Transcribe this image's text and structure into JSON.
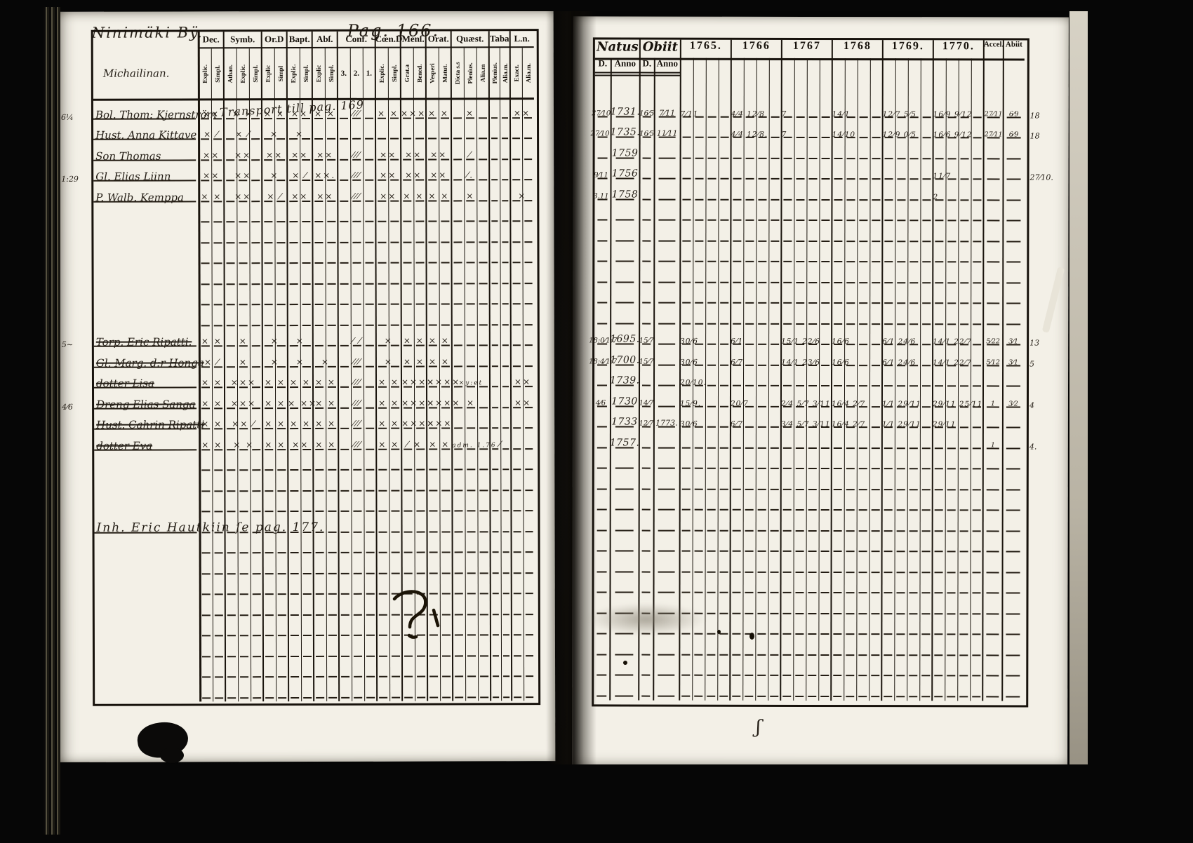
{
  "misc": {
    "place": "Ninimäki Bÿ.",
    "pag": "Pag. 166.",
    "name_col_note": "Michailinan.",
    "transport_note": "Transport till pag. 169",
    "bottom_note": "Inh. Eric Hautkiin ſe pag. 177.",
    "squiggle": "ʃ",
    "question_mark": "?"
  },
  "left_table": {
    "columns": [
      {
        "label": "Dec.",
        "subs": [
          "Explic.",
          "Simpl."
        ]
      },
      {
        "label": "Symb.",
        "subs": [
          "Athan.",
          "Explic.",
          "Simpl."
        ]
      },
      {
        "label": "Or.D",
        "subs": [
          "Explic",
          "Simpl"
        ]
      },
      {
        "label": "Bapt.",
        "subs": [
          "Explic.",
          "Simpl."
        ]
      },
      {
        "label": "Abſ.",
        "subs": [
          "Explic",
          "Simpl."
        ]
      },
      {
        "label": "Conf.",
        "subs": [
          "3.",
          "2.",
          "1."
        ],
        "horizontal": true
      },
      {
        "label": "Cœn.D",
        "subs": [
          "Explic.",
          "Simpl."
        ]
      },
      {
        "label": "Menſ.",
        "subs": [
          "Grat.a",
          "Bened."
        ]
      },
      {
        "label": "Orat.",
        "subs": [
          "Vesperi",
          "Matut."
        ]
      },
      {
        "label": "Quæst.",
        "subs": [
          "Dicta s.s",
          "Plenius.",
          "Alia.m"
        ]
      },
      {
        "label": "Taba",
        "subs": [
          "Plenius.",
          "Alia.m."
        ]
      },
      {
        "label": "L.n.",
        "subs": [
          "Exact.",
          "Alia.m."
        ]
      }
    ],
    "rows": [
      {
        "margin": "6¼",
        "name": "Bol. Thom: Kjernström",
        "marks": [
          "××",
          "× ×",
          "× ×",
          "××",
          "× ×",
          "⁄⁄⁄",
          "× ×",
          "×××",
          "× ×",
          "×",
          "",
          "××"
        ]
      },
      {
        "name": "Hust. Anna Kittave",
        "marks": [
          "× ⁄",
          "× ⁄",
          "×",
          "×",
          "",
          "",
          "",
          "",
          "",
          "",
          "",
          ""
        ]
      },
      {
        "name": "Son Thomas",
        "marks": [
          "××",
          "××",
          "××",
          "××",
          "××",
          "⁄⁄⁄",
          "××",
          "××",
          "××",
          "⁄",
          "",
          ""
        ]
      },
      {
        "margin": "1:29",
        "name": "Gl. Elias Liinn",
        "marks": [
          "××",
          "××",
          "×",
          "× ⁄",
          "××.",
          "⁄⁄⁄",
          "××",
          "××",
          "××",
          "⁄.",
          "",
          ""
        ]
      },
      {
        "name": "P. Walb. Kemppa",
        "marks": [
          "× ×",
          "××",
          "× ⁄",
          "××",
          "××",
          "⁄⁄⁄",
          "××",
          "× ×",
          "× ×",
          "×",
          "",
          "×"
        ]
      },
      {},
      {},
      {},
      {},
      {},
      {},
      {
        "margin": "5~",
        "name": "Torp. Eric Ripatti.",
        "struck": true,
        "marks": [
          "× ×",
          "×",
          "×",
          "×",
          "",
          "⁄ ⁄",
          "×",
          "× ×",
          "× ×",
          "",
          "",
          ""
        ]
      },
      {
        "name": "Gl. Marg. d:r Honga",
        "struck": true,
        "marks": [
          "× ⁄",
          "×",
          "×",
          "×",
          "×",
          "⁄⁄⁄",
          "×",
          "× ×",
          "× ×",
          "",
          "",
          ""
        ]
      },
      {
        "name": "dotter Lisa",
        "struck": true,
        "marks": [
          "× ×",
          "×××",
          "× ×",
          "× ×",
          "× ×",
          "⁄⁄⁄",
          "× ×",
          "××××",
          "××××",
          "×y:et",
          "",
          "××"
        ]
      },
      {
        "margin": "4⁄6",
        "name": "Dreng Elias Sanga",
        "struck": true,
        "marks": [
          "× ×",
          "×××",
          "× ×",
          "× ××",
          "× ×",
          "⁄⁄⁄",
          "× ×",
          "××××",
          "××××",
          "×",
          "",
          "××"
        ]
      },
      {
        "name": "Hust. Cahrin Ripatti",
        "struck": true,
        "marks": [
          "× ×",
          "×× ⁄",
          "× ×",
          "× ×",
          "× ×",
          "⁄⁄⁄",
          "× ×",
          "××××",
          "×××",
          "",
          "",
          ""
        ]
      },
      {
        "name": "dotter Eva",
        "struck": true,
        "marks": [
          "× ×",
          "× ×",
          "× ×",
          "××",
          "× ×",
          "⁄⁄⁄",
          "× ×",
          "⁄ ×",
          "× ×",
          "adm. 1.76",
          "⁄",
          ""
        ]
      },
      {},
      {},
      {},
      {
        "name": "Inh. Eric Hautkiin ſe pag. 177.",
        "wide": true
      },
      {},
      {},
      {},
      {},
      {},
      {},
      {},
      {}
    ]
  },
  "right_table": {
    "header": {
      "natus": "Natus",
      "obiit": "Obiit",
      "d1": "D.",
      "anno1": "Anno",
      "d2": "D.",
      "anno2": "Anno",
      "years": [
        "1765.",
        "1766",
        "1767",
        "1768",
        "1769.",
        "1770."
      ],
      "accel": "Accel.",
      "abiit": "Abiit"
    },
    "rows": [
      {
        "nd": "27⁄10",
        "na": "1731.",
        "od": "16⁄5",
        "oa": "7⁄11",
        "y": [
          "7⁄11",
          "4⁄4 12⁄8",
          "7",
          "14⁄1",
          "12⁄7 5⁄5",
          "16⁄9 9⁄12"
        ],
        "ac": "27⁄11",
        "ab": "6⁄9",
        "mg": "18"
      },
      {
        "nd": "27⁄10.",
        "na": "1735.",
        "od": "16⁄5",
        "oa": "11⁄11",
        "y": [
          "",
          "4⁄4 12⁄8.",
          "7",
          "14⁄10",
          "12⁄9 0⁄5",
          "16⁄6 9⁄12"
        ],
        "ac": "27⁄11",
        "ab": "6⁄9",
        "mg": "18"
      },
      {
        "na": "1759"
      },
      {
        "nd": "9⁄11",
        "na": "1756",
        "y": [
          "",
          "",
          "",
          "",
          "",
          "11⁄7"
        ],
        "mg": "27⁄10."
      },
      {
        "nd": "3.11",
        "na": "1758",
        "y": [
          "",
          "",
          "",
          "",
          "",
          "2"
        ]
      },
      {},
      {},
      {},
      {},
      {},
      {},
      {
        "nd": "18:0⁄1:7",
        "na": "1695.",
        "od": "15⁄7",
        "y": [
          "30⁄6",
          "6⁄1",
          "15⁄1 22⁄6",
          "16⁄6",
          "6⁄1 24⁄6",
          "14⁄1 22⁄7"
        ],
        "ac": "5⁄22",
        "ab": "3⁄1",
        "mg": "13"
      },
      {
        "nd": "18:4⁄1:7",
        "na": "1700.",
        "od": "15⁄7",
        "y": [
          "30⁄6",
          "6⁄7",
          "14⁄1 23⁄6",
          "16⁄6",
          "6⁄1 24⁄6",
          "14⁄1 22⁄7"
        ],
        "ac": "5⁄12",
        "ab": "3⁄1",
        "mg": "5"
      },
      {
        "na": "1739.",
        "y": [
          "20⁄10.",
          "",
          "",
          "",
          "",
          ""
        ]
      },
      {
        "nd": "4⁄6",
        "na": "1730",
        "od": "14⁄7",
        "y": [
          "15⁄9.",
          "20⁄7",
          "2⁄4 5⁄7 3⁄11",
          "16⁄4 2⁄7",
          "1⁄1 29⁄11",
          "29⁄11 25⁄11"
        ],
        "ac": "1",
        "ab": "3⁄2",
        "mg": "4"
      },
      {
        "na": "1733",
        "od": "12⁄7",
        "oa": "1773.",
        "y": [
          "30⁄6",
          "6⁄7",
          "3⁄4 5⁄7 3⁄11",
          "16⁄4 2⁄7",
          "1⁄1 29⁄11",
          "29⁄11"
        ]
      },
      {
        "na": "1757.",
        "ac": "1",
        "mg": "4."
      },
      {},
      {},
      {},
      {},
      {},
      {},
      {},
      {},
      {},
      {},
      {},
      {}
    ]
  }
}
